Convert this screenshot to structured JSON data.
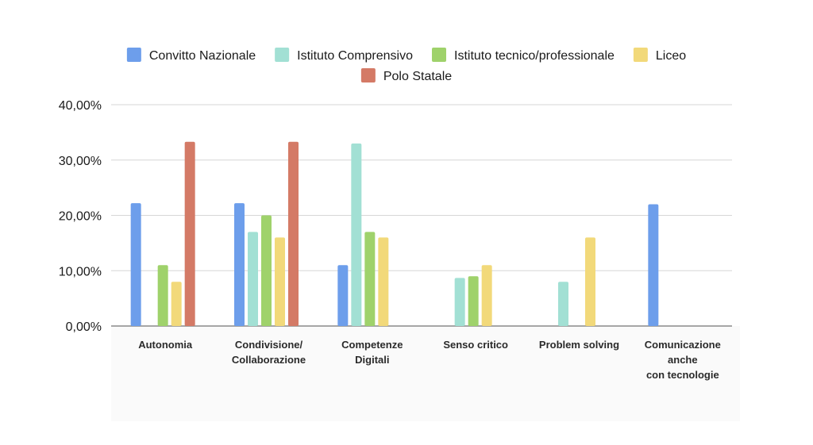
{
  "chart_data": {
    "type": "bar",
    "title": "",
    "xlabel": "",
    "ylabel": "",
    "ylim": [
      0,
      40
    ],
    "yticks": [
      {
        "value": 0,
        "label": "0,00%"
      },
      {
        "value": 10,
        "label": "10,00%"
      },
      {
        "value": 20,
        "label": "20,00%"
      },
      {
        "value": 30,
        "label": "30,00%"
      },
      {
        "value": 40,
        "label": "40,00%"
      }
    ],
    "grid": true,
    "legend_position": "top",
    "categories": [
      {
        "lines": [
          "Autonomia"
        ]
      },
      {
        "lines": [
          "Condivisione/",
          "Collaborazione"
        ]
      },
      {
        "lines": [
          "Competenze",
          "Digitali"
        ]
      },
      {
        "lines": [
          "Senso critico"
        ]
      },
      {
        "lines": [
          "Problem solving"
        ]
      },
      {
        "lines": [
          "Comunicazione",
          "anche",
          "con tecnologie"
        ]
      }
    ],
    "series": [
      {
        "name": "Convitto Nazionale",
        "color": "#6d9eeb",
        "values": [
          22.2,
          22.2,
          11.0,
          null,
          null,
          22.0
        ]
      },
      {
        "name": "Istituto Comprensivo",
        "color": "#a2e0d4",
        "values": [
          null,
          17.0,
          33.0,
          8.7,
          8.0,
          null
        ]
      },
      {
        "name": "Istituto tecnico/professionale",
        "color": "#9fd26b",
        "values": [
          11.0,
          20.0,
          17.0,
          9.0,
          null,
          null
        ]
      },
      {
        "name": "Liceo",
        "color": "#f2d97a",
        "values": [
          8.0,
          16.0,
          16.0,
          11.0,
          16.0,
          null
        ]
      },
      {
        "name": "Polo Statale",
        "color": "#d47a66",
        "values": [
          33.3,
          33.3,
          null,
          null,
          null,
          null
        ]
      }
    ]
  }
}
